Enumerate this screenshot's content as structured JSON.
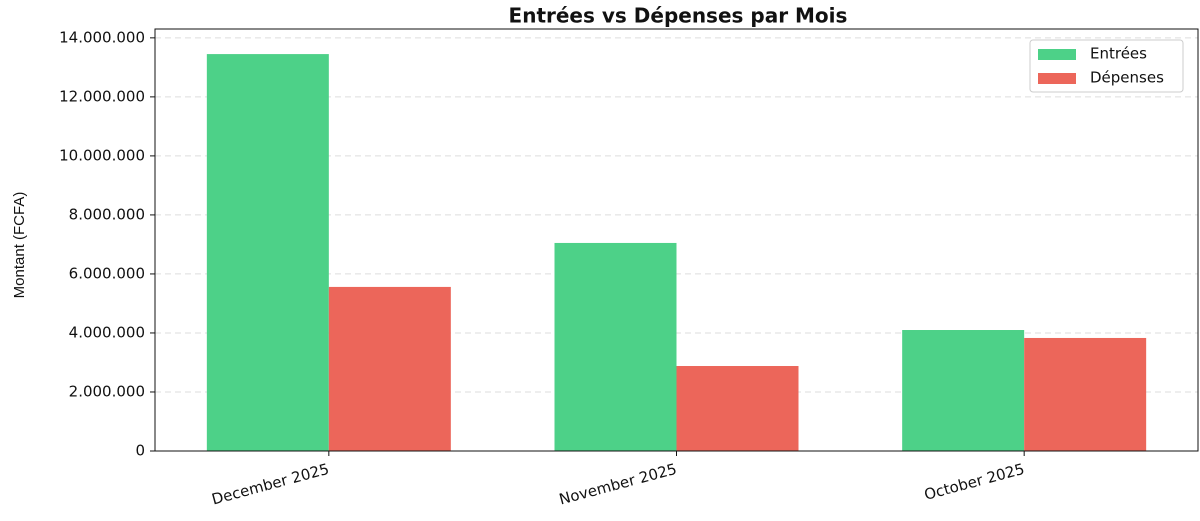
{
  "chart_data": {
    "type": "bar",
    "title": "Entrées vs Dépenses par Mois",
    "y_label": "Montant (FCFA)",
    "categories": [
      "December 2025",
      "November 2025",
      "October 2025"
    ],
    "series": [
      {
        "name": "Entrées",
        "color": "#4dd188",
        "values": [
          13450000,
          7050000,
          4100000
        ]
      },
      {
        "name": "Dépenses",
        "color": "#ec665a",
        "values": [
          5560000,
          2880000,
          3830000
        ]
      }
    ],
    "ylim": [
      0,
      14300000
    ],
    "yticks": [
      0,
      {
        "value": 2000000,
        "label": "2.000.000"
      },
      {
        "value": 4000000,
        "label": "4.000.000"
      },
      {
        "value": 6000000,
        "label": "6.000.000"
      },
      {
        "value": 8000000,
        "label": "8.000.000"
      },
      {
        "value": 10000000,
        "label": "10.000.000"
      },
      {
        "value": 12000000,
        "label": "12.000.000"
      },
      {
        "value": 14000000,
        "label": "14.000.000"
      }
    ],
    "grid": true,
    "legend": "upper right"
  }
}
